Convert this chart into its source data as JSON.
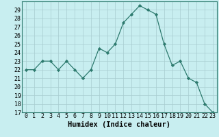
{
  "x": [
    0,
    1,
    2,
    3,
    4,
    5,
    6,
    7,
    8,
    9,
    10,
    11,
    12,
    13,
    14,
    15,
    16,
    17,
    18,
    19,
    20,
    21,
    22,
    23
  ],
  "y": [
    22,
    22,
    23,
    23,
    22,
    23,
    22,
    21,
    22,
    24.5,
    24,
    25,
    27.5,
    28.5,
    29.5,
    29,
    28.5,
    25,
    22.5,
    23,
    21,
    20.5,
    18,
    17
  ],
  "xlabel": "Humidex (Indice chaleur)",
  "ylim_min": 17,
  "ylim_max": 30,
  "line_color": "#2d7a6e",
  "bg_color": "#c8eef0",
  "grid_color": "#a8ccd0",
  "xlabel_fontsize": 7.5,
  "tick_fontsize": 6.0
}
